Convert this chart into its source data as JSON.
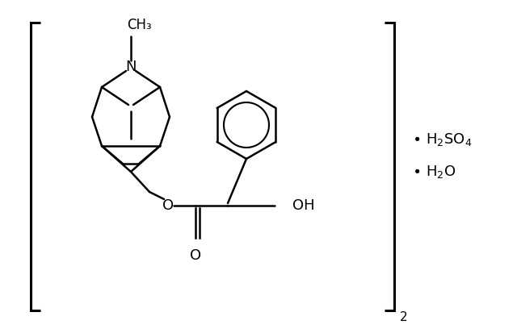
{
  "background_color": "#ffffff",
  "line_color": "#000000",
  "line_width": 1.8,
  "fig_width": 6.4,
  "fig_height": 4.13,
  "dpi": 100,
  "bracket_text": "2",
  "salt1": "• H₂SO₄",
  "salt2": "• H₂O",
  "ch3_label": "CH₃",
  "N_label": "N",
  "O_label": "O",
  "OH_label": "OH",
  "carbonyl_O": "O"
}
